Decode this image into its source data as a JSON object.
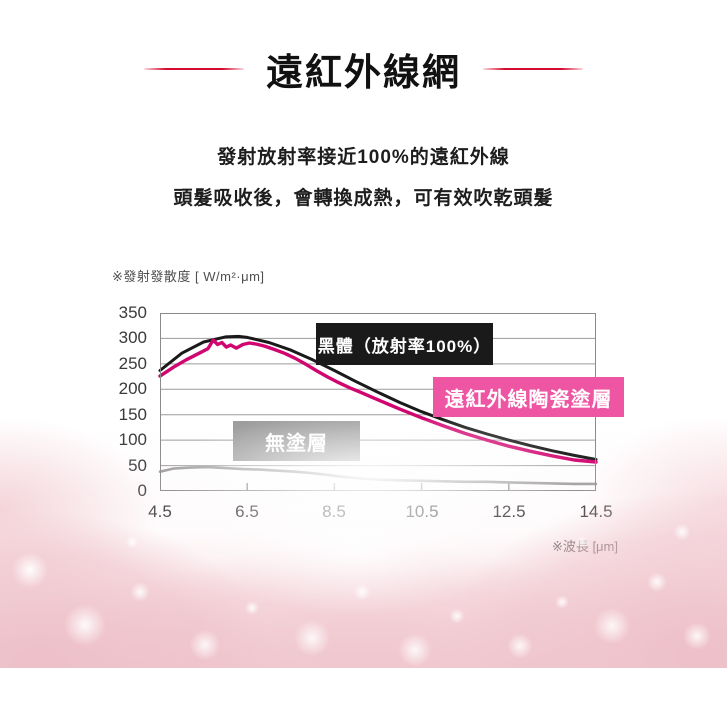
{
  "header": {
    "title": "遠紅外線網",
    "subtitle_line1": "發射放射率接近100%的遠紅外線",
    "subtitle_line2": "頭髮吸收後，會轉換成熱，可有效吹乾頭髮",
    "accent_red": "#d60a30"
  },
  "chart_data": {
    "type": "line",
    "y_axis_label": "※發射發散度 [ W/m²·μm]",
    "x_axis_label": "※波長 [μm]",
    "xlim": [
      4.5,
      14.5
    ],
    "ylim": [
      0,
      350
    ],
    "x_ticks": [
      "4.5",
      "6.5",
      "8.5",
      "10.5",
      "12.5",
      "14.5"
    ],
    "y_ticks": [
      "350",
      "300",
      "250",
      "200",
      "150",
      "100",
      "50",
      "0"
    ],
    "grid": "horizontal",
    "legend_position": "inline-boxed-labels",
    "series": [
      {
        "name": "黑體（放射率100%）",
        "line_color": "#1a1a1a",
        "label_bg": "#1a1a1a",
        "label_text_color": "#ffffff",
        "line_width": 3,
        "x": [
          4.5,
          5.0,
          5.5,
          6.0,
          6.3,
          6.5,
          7.0,
          7.5,
          8.0,
          8.5,
          9.0,
          9.5,
          10.0,
          10.5,
          11.0,
          11.5,
          12.0,
          12.5,
          13.0,
          13.5,
          14.0,
          14.5
        ],
        "values": [
          237,
          271,
          293,
          303,
          304,
          302,
          292,
          277,
          258,
          237,
          215,
          194,
          174,
          156,
          140,
          125,
          112,
          100,
          89,
          79,
          70,
          62
        ]
      },
      {
        "name": "遠紅外線陶瓷塗層",
        "line_color": "#d1056f",
        "label_bg": "#ee55a3",
        "label_text_color": "#ffffff",
        "line_width": 3.4,
        "x": [
          4.5,
          4.8,
          5.1,
          5.4,
          5.6,
          5.72,
          5.82,
          5.92,
          6.02,
          6.12,
          6.25,
          6.4,
          6.55,
          6.7,
          6.9,
          7.1,
          7.35,
          7.6,
          7.85,
          8.1,
          8.35,
          8.6,
          8.85,
          9.1,
          9.4,
          9.7,
          10.0,
          10.5,
          11.0,
          11.5,
          12.0,
          12.5,
          13.0,
          13.5,
          14.0,
          14.5
        ],
        "values": [
          226,
          243,
          258,
          271,
          280,
          297,
          288,
          292,
          283,
          287,
          281,
          288,
          291,
          289,
          285,
          279,
          271,
          261,
          249,
          236,
          224,
          213,
          203,
          194,
          183,
          172,
          161,
          144,
          128,
          113,
          100,
          88,
          78,
          69,
          61,
          57
        ]
      },
      {
        "name": "無塗層",
        "line_color": "#9e9e9e",
        "label_bg": "#9d9d9d",
        "label_text_color": "#ffffff",
        "line_width": 2.6,
        "x": [
          4.5,
          4.8,
          5.2,
          5.6,
          6.0,
          6.4,
          6.8,
          7.2,
          7.6,
          8.0,
          8.4,
          8.8,
          9.2,
          9.6,
          10.0,
          10.5,
          11.0,
          11.5,
          12.0,
          12.5,
          13.0,
          13.5,
          14.0,
          14.5
        ],
        "values": [
          38,
          44,
          46,
          47,
          45,
          43,
          42,
          40,
          38,
          35,
          31,
          27,
          24,
          22,
          21,
          20,
          19,
          18,
          18,
          17,
          16,
          15,
          14,
          14
        ]
      }
    ]
  }
}
